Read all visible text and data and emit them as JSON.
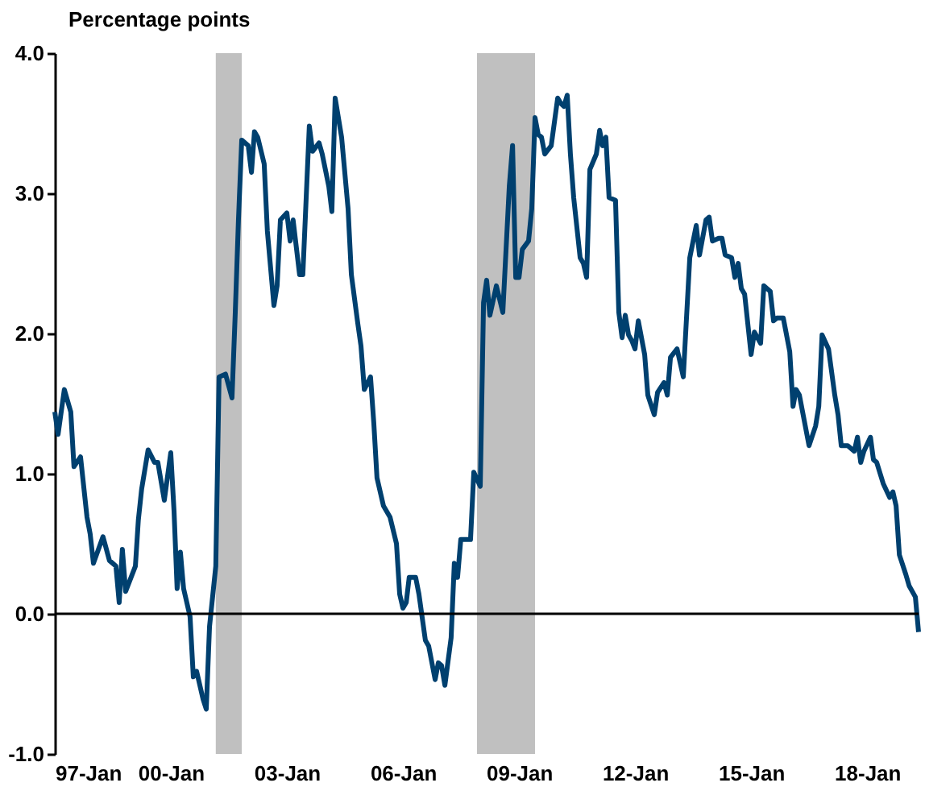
{
  "chart_data": {
    "type": "line",
    "ylabel": "Percentage points",
    "x": [
      "1997-01",
      "1997-02",
      "1997-04",
      "1997-06",
      "1997-07",
      "1997-09",
      "1997-11",
      "1997-12",
      "1998-01",
      "1998-04",
      "1998-06",
      "1998-08",
      "1998-09",
      "1998-10",
      "1998-11",
      "1999-02",
      "1999-03",
      "1999-04",
      "1999-06",
      "1999-08",
      "1999-09",
      "1999-11",
      "2000-01",
      "2000-02",
      "2000-03",
      "2000-04",
      "2000-05",
      "2000-07",
      "2000-08",
      "2000-09",
      "2000-11",
      "2000-12",
      "2001-01",
      "2001-03",
      "2001-04",
      "2001-06",
      "2001-08",
      "2001-09",
      "2001-10",
      "2001-11",
      "2002-01",
      "2002-02",
      "2002-03",
      "2002-04",
      "2002-06",
      "2002-07",
      "2002-09",
      "2002-10",
      "2002-11",
      "2003-01",
      "2003-02",
      "2003-03",
      "2003-05",
      "2003-06",
      "2003-08",
      "2003-09",
      "2003-11",
      "2003-12",
      "2004-02",
      "2004-03",
      "2004-04",
      "2004-06",
      "2004-08",
      "2004-09",
      "2004-11",
      "2004-12",
      "2005-01",
      "2005-03",
      "2005-04",
      "2005-05",
      "2005-07",
      "2005-09",
      "2005-11",
      "2005-12",
      "2006-01",
      "2006-02",
      "2006-03",
      "2006-05",
      "2006-06",
      "2006-08",
      "2006-09",
      "2006-11",
      "2006-12",
      "2007-01",
      "2007-02",
      "2007-04",
      "2007-05",
      "2007-06",
      "2007-07",
      "2007-10",
      "2007-11",
      "2008-01",
      "2008-02",
      "2008-03",
      "2008-04",
      "2008-06",
      "2008-08",
      "2008-10",
      "2008-11",
      "2008-12",
      "2009-01",
      "2009-02",
      "2009-04",
      "2009-05",
      "2009-06",
      "2009-07",
      "2009-08",
      "2009-09",
      "2009-11",
      "2010-01",
      "2010-02",
      "2010-03",
      "2010-04",
      "2010-05",
      "2010-06",
      "2010-08",
      "2010-09",
      "2010-10",
      "2010-11",
      "2011-01",
      "2011-02",
      "2011-03",
      "2011-04",
      "2011-05",
      "2011-07",
      "2011-08",
      "2011-09",
      "2011-10",
      "2011-11",
      "2011-12",
      "2012-01",
      "2012-02",
      "2012-04",
      "2012-05",
      "2012-07",
      "2012-08",
      "2012-10",
      "2012-11",
      "2012-12",
      "2013-02",
      "2013-04",
      "2013-06",
      "2013-08",
      "2013-09",
      "2013-11",
      "2013-12",
      "2014-01",
      "2014-03",
      "2014-04",
      "2014-05",
      "2014-07",
      "2014-08",
      "2014-09",
      "2014-10",
      "2014-11",
      "2015-01",
      "2015-02",
      "2015-04",
      "2015-05",
      "2015-07",
      "2015-08",
      "2015-09",
      "2015-11",
      "2016-01",
      "2016-02",
      "2016-03",
      "2016-04",
      "2016-07",
      "2016-09",
      "2016-10",
      "2016-11",
      "2017-01",
      "2017-03",
      "2017-04",
      "2017-05",
      "2017-07",
      "2017-09",
      "2017-10",
      "2017-11",
      "2017-12",
      "2018-02",
      "2018-03",
      "2018-04",
      "2018-06",
      "2018-08",
      "2018-09",
      "2018-10",
      "2018-11",
      "2019-01",
      "2019-02",
      "2019-04",
      "2019-05"
    ],
    "series": [
      {
        "color": "#00406f",
        "values": [
          1.44,
          1.28,
          1.6,
          1.44,
          1.05,
          1.12,
          0.69,
          0.57,
          0.36,
          0.55,
          0.38,
          0.34,
          0.08,
          0.46,
          0.16,
          0.34,
          0.67,
          0.89,
          1.17,
          1.08,
          1.08,
          0.81,
          1.15,
          0.73,
          0.18,
          0.44,
          0.18,
          -0.02,
          -0.45,
          -0.41,
          -0.61,
          -0.68,
          -0.09,
          0.34,
          1.69,
          1.71,
          1.54,
          2.15,
          2.81,
          3.38,
          3.34,
          3.15,
          3.44,
          3.4,
          3.21,
          2.73,
          2.2,
          2.34,
          2.81,
          2.86,
          2.66,
          2.81,
          2.42,
          2.42,
          3.48,
          3.3,
          3.36,
          3.28,
          3.05,
          2.87,
          3.68,
          3.4,
          2.89,
          2.42,
          2.07,
          1.91,
          1.6,
          1.69,
          1.36,
          0.97,
          0.77,
          0.69,
          0.5,
          0.14,
          0.04,
          0.08,
          0.26,
          0.26,
          0.14,
          -0.19,
          -0.23,
          -0.47,
          -0.35,
          -0.37,
          -0.51,
          -0.17,
          0.36,
          0.26,
          0.53,
          0.53,
          1.01,
          0.91,
          2.22,
          2.38,
          2.13,
          2.34,
          2.15,
          3.05,
          3.34,
          2.4,
          2.4,
          2.6,
          2.66,
          2.89,
          3.54,
          3.42,
          3.4,
          3.28,
          3.34,
          3.68,
          3.64,
          3.62,
          3.7,
          3.28,
          2.97,
          2.54,
          2.5,
          2.4,
          3.17,
          3.28,
          3.45,
          3.34,
          3.4,
          2.97,
          2.95,
          2.15,
          1.97,
          2.13,
          1.99,
          1.95,
          1.89,
          2.09,
          1.85,
          1.56,
          1.42,
          1.58,
          1.65,
          1.56,
          1.83,
          1.89,
          1.69,
          2.54,
          2.77,
          2.56,
          2.81,
          2.83,
          2.66,
          2.68,
          2.68,
          2.56,
          2.54,
          2.4,
          2.5,
          2.32,
          2.28,
          1.85,
          2.01,
          1.93,
          2.34,
          2.3,
          2.09,
          2.11,
          2.11,
          1.87,
          1.48,
          1.6,
          1.56,
          1.2,
          1.34,
          1.48,
          1.99,
          1.89,
          1.56,
          1.42,
          1.2,
          1.2,
          1.16,
          1.26,
          1.08,
          1.16,
          1.26,
          1.1,
          1.08,
          0.93,
          0.83,
          0.87,
          0.77,
          0.42,
          0.28,
          0.2,
          0.12,
          -0.13
        ]
      }
    ],
    "xlim": [
      "1997-01",
      "2019-05"
    ],
    "xticks": [
      {
        "value": "1997-01",
        "label": "97-Jan"
      },
      {
        "value": "2000-01",
        "label": "00-Jan"
      },
      {
        "value": "2003-01",
        "label": "03-Jan"
      },
      {
        "value": "2006-01",
        "label": "06-Jan"
      },
      {
        "value": "2009-01",
        "label": "09-Jan"
      },
      {
        "value": "2012-01",
        "label": "12-Jan"
      },
      {
        "value": "2015-01",
        "label": "15-Jan"
      },
      {
        "value": "2018-01",
        "label": "18-Jan"
      }
    ],
    "ylim": [
      -1,
      4
    ],
    "yticks": [
      {
        "value": -1,
        "label": "-1.0"
      },
      {
        "value": 0,
        "label": "0.0"
      },
      {
        "value": 1,
        "label": "1.0"
      },
      {
        "value": 2,
        "label": "2.0"
      },
      {
        "value": 3,
        "label": "3.0"
      },
      {
        "value": 4,
        "label": "4.0"
      }
    ],
    "bands": [
      {
        "axis": "x",
        "from": "2001-03",
        "to": "2001-11",
        "color": "#c0c0c0"
      },
      {
        "axis": "x",
        "from": "2007-12",
        "to": "2009-06",
        "color": "#c0c0c0"
      }
    ],
    "ref_lines": [
      {
        "axis": "y",
        "value": 0,
        "color": "#000000"
      }
    ],
    "marker": "none",
    "line_style": "solid"
  }
}
